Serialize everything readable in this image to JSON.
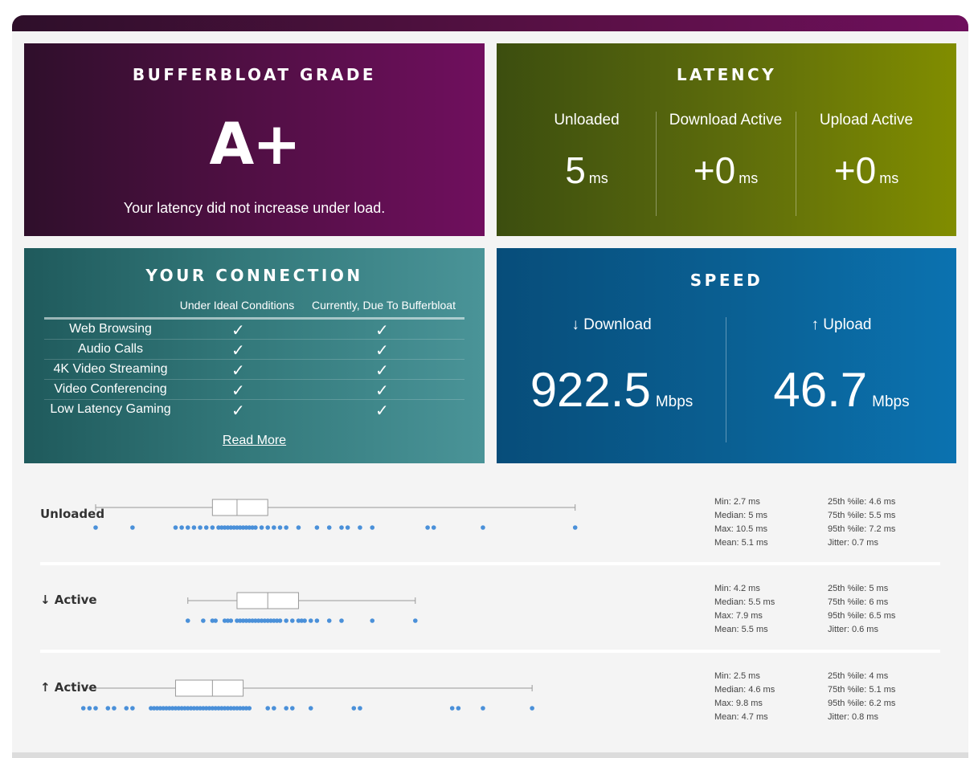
{
  "grade": {
    "title": "BUFFERBLOAT GRADE",
    "value": "A+",
    "message": "Your latency did not increase under load."
  },
  "latency": {
    "title": "LATENCY",
    "columns": [
      {
        "label": "Unloaded",
        "value": "5",
        "unit": "ms"
      },
      {
        "label": "Download Active",
        "value": "+0",
        "unit": "ms"
      },
      {
        "label": "Upload Active",
        "value": "+0",
        "unit": "ms"
      }
    ]
  },
  "connection": {
    "title": "YOUR CONNECTION",
    "headers": [
      "Under Ideal Conditions",
      "Currently, Due To Bufferbloat"
    ],
    "rows": [
      {
        "label": "Web Browsing",
        "ideal": "✓",
        "current": "✓"
      },
      {
        "label": "Audio Calls",
        "ideal": "✓",
        "current": "✓"
      },
      {
        "label": "4K Video Streaming",
        "ideal": "✓",
        "current": "✓"
      },
      {
        "label": "Video Conferencing",
        "ideal": "✓",
        "current": "✓"
      },
      {
        "label": "Low Latency Gaming",
        "ideal": "✓",
        "current": "✓"
      }
    ],
    "read_more": "Read More"
  },
  "speed": {
    "title": "SPEED",
    "download": {
      "label": "↓ Download",
      "value": "922.5",
      "unit": "Mbps"
    },
    "upload": {
      "label": "↑ Upload",
      "value": "46.7",
      "unit": "Mbps"
    }
  },
  "stats": [
    {
      "label": "Unloaded",
      "min": 2.7,
      "q1": 4.6,
      "median": 5.0,
      "q3": 5.5,
      "max": 10.5,
      "left": [
        "Min: 2.7 ms",
        "Median: 5 ms",
        "Max: 10.5 ms",
        "Mean: 5.1 ms"
      ],
      "right": [
        "25th %ile: 4.6 ms",
        "75th %ile: 5.5 ms",
        "95th %ile: 7.2 ms",
        "Jitter: 0.7 ms"
      ],
      "points": [
        2.7,
        3.3,
        4.0,
        4.1,
        4.2,
        4.3,
        4.4,
        4.5,
        4.6,
        4.7,
        4.75,
        4.8,
        4.85,
        4.9,
        4.95,
        5.0,
        5.05,
        5.1,
        5.15,
        5.2,
        5.25,
        5.3,
        5.4,
        5.5,
        5.6,
        5.7,
        5.8,
        6.0,
        6.3,
        6.5,
        6.7,
        6.8,
        7.0,
        7.2,
        8.1,
        8.2,
        9.0,
        10.5
      ]
    },
    {
      "label": "↓ Active",
      "min": 4.2,
      "q1": 5.0,
      "median": 5.5,
      "q3": 6.0,
      "max": 7.9,
      "left": [
        "Min: 4.2 ms",
        "Median: 5.5 ms",
        "Max: 7.9 ms",
        "Mean: 5.5 ms"
      ],
      "right": [
        "25th %ile: 5 ms",
        "75th %ile: 6 ms",
        "95th %ile: 6.5 ms",
        "Jitter: 0.6 ms"
      ],
      "points": [
        4.2,
        4.45,
        4.6,
        4.65,
        4.8,
        4.85,
        4.9,
        5.0,
        5.05,
        5.1,
        5.15,
        5.2,
        5.25,
        5.3,
        5.35,
        5.4,
        5.45,
        5.5,
        5.55,
        5.6,
        5.65,
        5.7,
        5.8,
        5.9,
        6.0,
        6.05,
        6.1,
        6.2,
        6.3,
        6.5,
        6.7,
        7.2,
        7.9
      ]
    },
    {
      "label": "↑ Active",
      "min": 2.5,
      "q1": 4.0,
      "median": 4.6,
      "q3": 5.1,
      "max": 9.8,
      "left": [
        "Min: 2.5 ms",
        "Median: 4.6 ms",
        "Max: 9.8 ms",
        "Mean: 4.7 ms"
      ],
      "right": [
        "25th %ile: 4 ms",
        "75th %ile: 5.1 ms",
        "95th %ile: 6.2 ms",
        "Jitter: 0.8 ms"
      ],
      "points": [
        2.5,
        2.6,
        2.7,
        2.9,
        3.0,
        3.2,
        3.3,
        3.6,
        3.65,
        3.7,
        3.75,
        3.8,
        3.85,
        3.9,
        3.95,
        4.0,
        4.05,
        4.1,
        4.15,
        4.2,
        4.25,
        4.3,
        4.35,
        4.4,
        4.45,
        4.5,
        4.55,
        4.6,
        4.65,
        4.7,
        4.75,
        4.8,
        4.85,
        4.9,
        4.95,
        5.0,
        5.05,
        5.1,
        5.15,
        5.2,
        5.5,
        5.6,
        5.8,
        5.9,
        6.2,
        6.9,
        7.0,
        8.5,
        8.6,
        9.0,
        9.8
      ]
    }
  ],
  "colors": {
    "point": "#4a90d9",
    "box_stroke": "#999999",
    "whisker": "#999999"
  }
}
